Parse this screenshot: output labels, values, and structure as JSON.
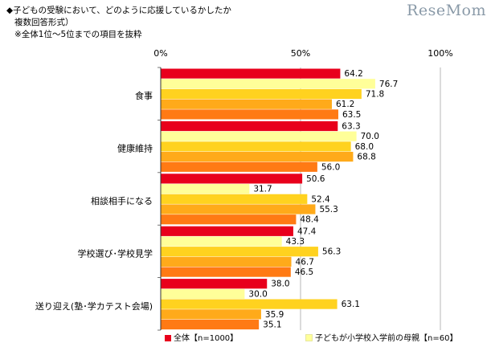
{
  "header": {
    "title_line1": "◆子どもの受験において、どのように応援しているかしたか",
    "title_line2": "複数回答形式）",
    "title_line3": "※全体1位～5位までの項目を抜粋",
    "brand": "ReseMom"
  },
  "colors": {
    "series": [
      "#e8001c",
      "#ffff99",
      "#ffd21f",
      "#ffaa1a",
      "#ff7a14"
    ],
    "grid": "#999999"
  },
  "chart_data": {
    "type": "bar",
    "orientation": "horizontal",
    "xlim": [
      0,
      100
    ],
    "x_ticks": [
      "0%",
      "50%",
      "100%"
    ],
    "categories": [
      "食事",
      "健康維持",
      "相談相手になる",
      "学校選び･学校見学",
      "送り迎え(塾･学カテスト会場)"
    ],
    "series": [
      {
        "name": "全体【n=1000】",
        "values": [
          64.2,
          63.3,
          50.6,
          47.4,
          38.0
        ]
      },
      {
        "name": "子どもが小学校入学前の母親【n=60】",
        "values": [
          76.7,
          70.0,
          31.7,
          43.3,
          30.0
        ]
      },
      {
        "name": "",
        "values": [
          71.8,
          68.0,
          52.4,
          56.3,
          63.1
        ]
      },
      {
        "name": "",
        "values": [
          61.2,
          68.8,
          55.3,
          46.7,
          35.9
        ]
      },
      {
        "name": "",
        "values": [
          63.5,
          56.0,
          48.4,
          46.5,
          35.1
        ]
      }
    ],
    "value_labels": [
      [
        "64.2",
        "63.3",
        "50.6",
        "47.4",
        "38.0"
      ],
      [
        "76.7",
        "70.0",
        "31.7",
        "43.3",
        "30.0"
      ],
      [
        "71.8",
        "68.0",
        "52.4",
        "56.3",
        "63.1"
      ],
      [
        "61.2",
        "68.8",
        "55.3",
        "46.7",
        "35.9"
      ],
      [
        "63.5",
        "56.0",
        "48.4",
        "46.5",
        "35.1"
      ]
    ],
    "legend": [
      {
        "label": "全体【n=1000】"
      },
      {
        "label": "子どもが小学校入学前の母親【n=60】"
      }
    ]
  }
}
